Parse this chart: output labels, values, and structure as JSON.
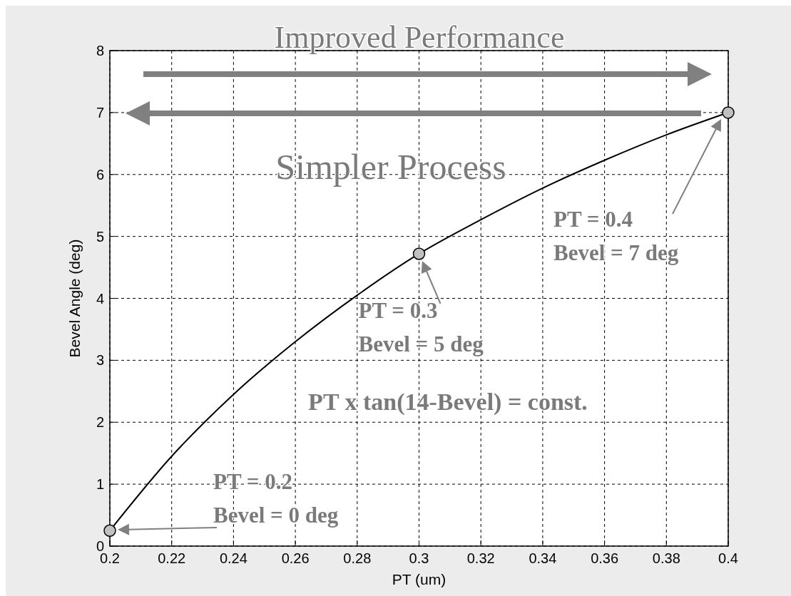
{
  "chart_data": {
    "type": "line",
    "xlabel": "PT (um)",
    "ylabel": "Bevel Angle (deg)",
    "xlim": [
      0.2,
      0.4
    ],
    "ylim": [
      0,
      8
    ],
    "xticks": [
      0.2,
      0.22,
      0.24,
      0.26,
      0.28,
      0.3,
      0.32,
      0.34,
      0.36,
      0.38,
      0.4
    ],
    "yticks": [
      0,
      1,
      2,
      3,
      4,
      5,
      6,
      7,
      8
    ],
    "grid": true,
    "series": [
      {
        "type": "line",
        "color": "#000000",
        "marker": "none",
        "x": [
          0.2,
          0.22,
          0.24,
          0.26,
          0.28,
          0.3,
          0.32,
          0.34,
          0.36,
          0.38,
          0.4
        ],
        "values": [
          0.25,
          1.45,
          2.45,
          3.3,
          4.05,
          4.72,
          5.27,
          5.78,
          6.23,
          6.64,
          7
        ]
      },
      {
        "type": "scatter",
        "color": "#c0c0c0",
        "marker": "circle",
        "x": [
          0.2,
          0.3,
          0.4
        ],
        "values": [
          0.25,
          4.72,
          7
        ]
      }
    ],
    "annotations": [
      "Improved Performance",
      "Simpler Process",
      "PT x tan(14-Bevel) = const.",
      "PT = 0.4\nBevel = 7 deg",
      {
        "text": "PT = 0.3\nBevel = 5 deg",
        "x": 0.3,
        "y": 4.72
      },
      "PT = 0.2\nBevel = 0 deg"
    ]
  }
}
